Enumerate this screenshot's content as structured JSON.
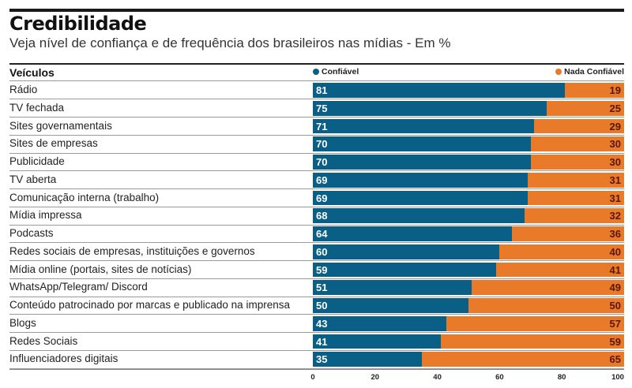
{
  "chart_data": {
    "type": "bar",
    "orientation": "horizontal-stacked",
    "title": "Credibilidade",
    "subtitle": "Veja nível de confiança e de frequência dos brasileiros nas mídias  - Em %",
    "category_header": "Veículos",
    "categories": [
      "Rádio",
      "TV fechada",
      "Sites governamentais",
      "Sites de empresas",
      "Publicidade",
      "TV aberta",
      "Comunicação interna (trabalho)",
      "Mídia impressa",
      "Podcasts",
      "Redes sociais de empresas, instituições e governos",
      "Mídia online (portais, sites de notícias)",
      "WhatsApp/Telegram/ Discord",
      "Conteúdo patrocinado por marcas e publicado na imprensa",
      "Blogs",
      "Redes Sociais",
      "Influenciadores digitais"
    ],
    "series": [
      {
        "name": "Confiável",
        "color": "#0a5f86",
        "label_color": "#ffffff",
        "values": [
          81,
          75,
          71,
          70,
          70,
          69,
          69,
          68,
          64,
          60,
          59,
          51,
          50,
          43,
          41,
          35
        ]
      },
      {
        "name": "Nada Confiável",
        "color": "#e87a2a",
        "label_color": "#5a1608",
        "values": [
          19,
          25,
          29,
          30,
          30,
          31,
          31,
          32,
          36,
          40,
          41,
          49,
          50,
          57,
          59,
          65
        ]
      }
    ],
    "xlim": [
      0,
      100
    ],
    "xticks": [
      "0",
      "20",
      "40",
      "60",
      "80",
      "100"
    ],
    "xlabel": "",
    "ylabel": "",
    "legend": "top",
    "grid": false
  }
}
